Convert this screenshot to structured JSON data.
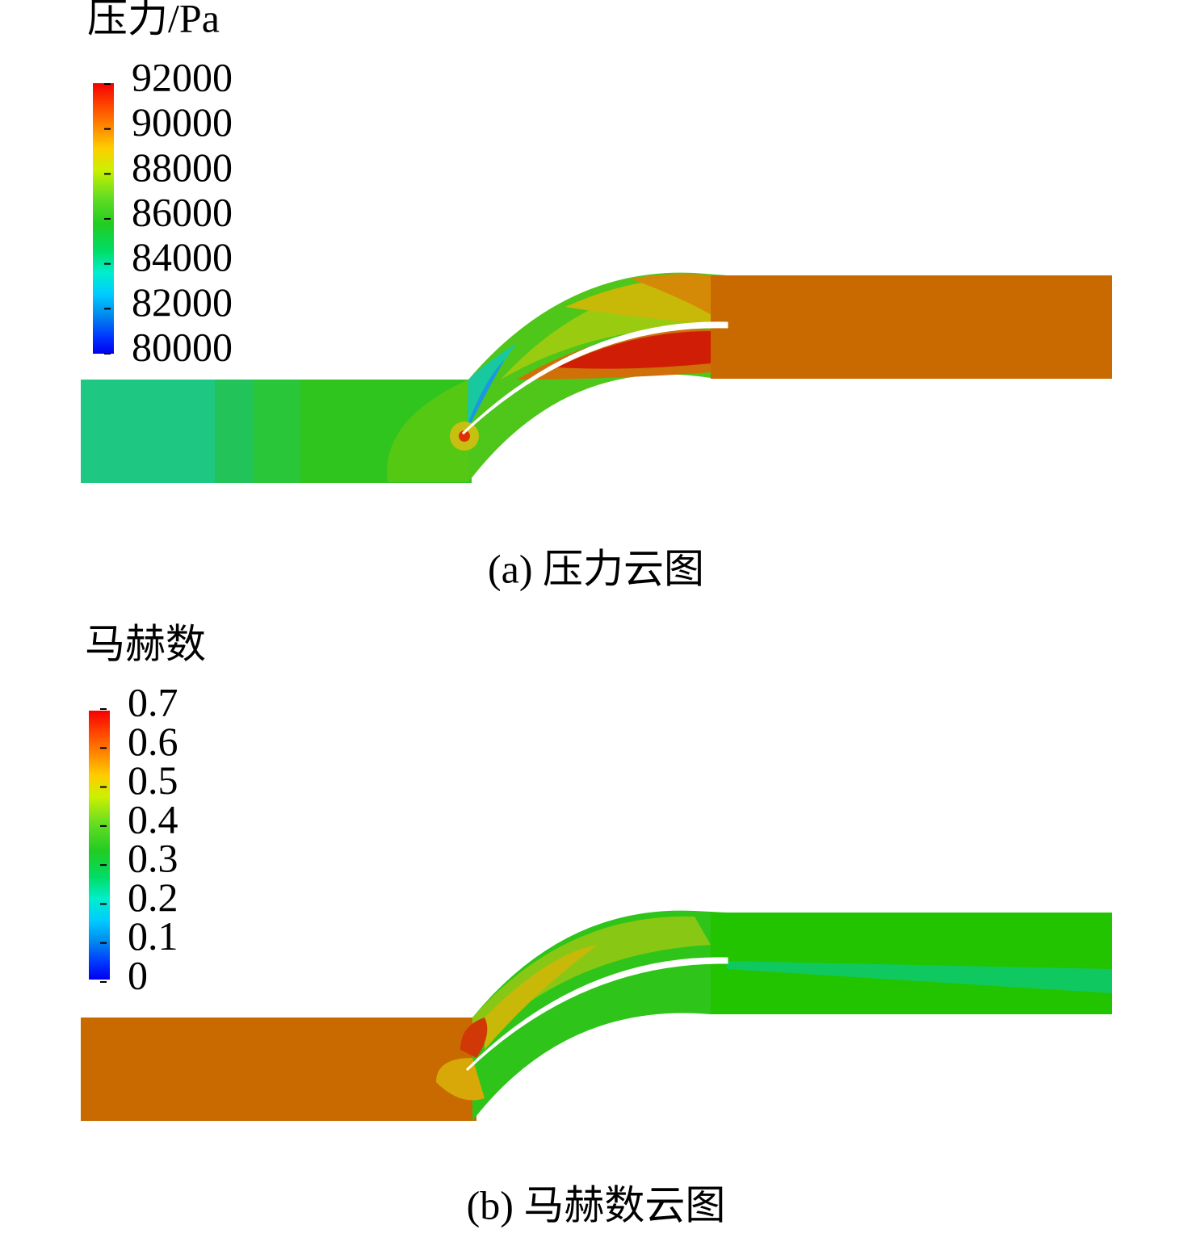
{
  "panels": [
    {
      "legend_title": "压力/Pa",
      "legend_ticks": [
        92000,
        90000,
        88000,
        86000,
        84000,
        82000,
        80000
      ],
      "caption": "(a) 压力云图"
    },
    {
      "legend_title": "马赫数",
      "legend_ticks": [
        0.7,
        0.6,
        0.5,
        0.4,
        0.3,
        0.2,
        0.1,
        0
      ],
      "caption": "(b) 马赫数云图"
    }
  ]
}
